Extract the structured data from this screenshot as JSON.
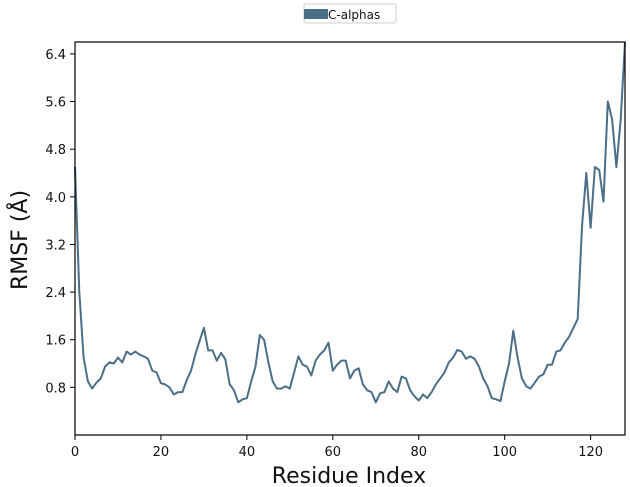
{
  "chart_data": {
    "type": "line",
    "title": "",
    "xlabel": "Residue Index",
    "ylabel": "RMSF (Å)",
    "xlim": [
      0,
      128
    ],
    "ylim": [
      0,
      6.6
    ],
    "xticks": [
      0,
      20,
      40,
      60,
      80,
      100,
      120
    ],
    "yticks": [
      0.8,
      1.6,
      2.4,
      3.2,
      4.0,
      4.8,
      5.6,
      6.4
    ],
    "ytick_labels": [
      "0.8",
      "1.6",
      "2.4",
      "3.2",
      "4.0",
      "4.8",
      "5.6",
      "6.4"
    ],
    "grid": false,
    "legend": "top-center",
    "colors": {
      "series": "#4a6f86",
      "axis": "#000000"
    },
    "series": [
      {
        "name": "C-alphas",
        "x": [
          0,
          1,
          2,
          3,
          4,
          5,
          6,
          7,
          8,
          9,
          10,
          11,
          12,
          13,
          14,
          15,
          16,
          17,
          18,
          19,
          20,
          21,
          22,
          23,
          24,
          25,
          26,
          27,
          28,
          29,
          30,
          31,
          32,
          33,
          34,
          35,
          36,
          37,
          38,
          39,
          40,
          41,
          42,
          43,
          44,
          45,
          46,
          47,
          48,
          49,
          50,
          51,
          52,
          53,
          54,
          55,
          56,
          57,
          58,
          59,
          60,
          61,
          62,
          63,
          64,
          65,
          66,
          67,
          68,
          69,
          70,
          71,
          72,
          73,
          74,
          75,
          76,
          77,
          78,
          79,
          80,
          81,
          82,
          83,
          84,
          85,
          86,
          87,
          88,
          89,
          90,
          91,
          92,
          93,
          94,
          95,
          96,
          97,
          98,
          99,
          100,
          101,
          102,
          103,
          104,
          105,
          106,
          107,
          108,
          109,
          110,
          111,
          112,
          113,
          114,
          115,
          116,
          117,
          118,
          119,
          120,
          121,
          122,
          123,
          124,
          125,
          126,
          127,
          128
        ],
        "values": [
          4.5,
          2.4,
          1.3,
          0.9,
          0.78,
          0.88,
          0.95,
          1.15,
          1.22,
          1.2,
          1.3,
          1.22,
          1.4,
          1.35,
          1.4,
          1.35,
          1.32,
          1.28,
          1.08,
          1.05,
          0.87,
          0.85,
          0.8,
          0.68,
          0.72,
          0.72,
          0.92,
          1.08,
          1.35,
          1.58,
          1.8,
          1.42,
          1.42,
          1.25,
          1.38,
          1.27,
          0.85,
          0.75,
          0.55,
          0.6,
          0.62,
          0.9,
          1.15,
          1.68,
          1.6,
          1.22,
          0.9,
          0.78,
          0.78,
          0.82,
          0.78,
          1.05,
          1.32,
          1.18,
          1.15,
          1.0,
          1.25,
          1.35,
          1.42,
          1.55,
          1.08,
          1.18,
          1.25,
          1.25,
          0.95,
          1.08,
          1.12,
          0.85,
          0.75,
          0.72,
          0.55,
          0.7,
          0.72,
          0.9,
          0.78,
          0.72,
          0.98,
          0.95,
          0.75,
          0.65,
          0.58,
          0.68,
          0.62,
          0.72,
          0.85,
          0.95,
          1.05,
          1.22,
          1.3,
          1.43,
          1.4,
          1.28,
          1.32,
          1.28,
          1.15,
          0.95,
          0.82,
          0.62,
          0.6,
          0.57,
          0.9,
          1.2,
          1.75,
          1.3,
          0.95,
          0.82,
          0.78,
          0.88,
          0.98,
          1.02,
          1.18,
          1.18,
          1.4,
          1.42,
          1.55,
          1.65,
          1.8,
          1.95,
          3.5,
          4.4,
          3.48,
          4.5,
          4.45,
          3.92,
          5.6,
          5.3,
          4.5,
          5.3,
          6.6
        ]
      }
    ]
  }
}
